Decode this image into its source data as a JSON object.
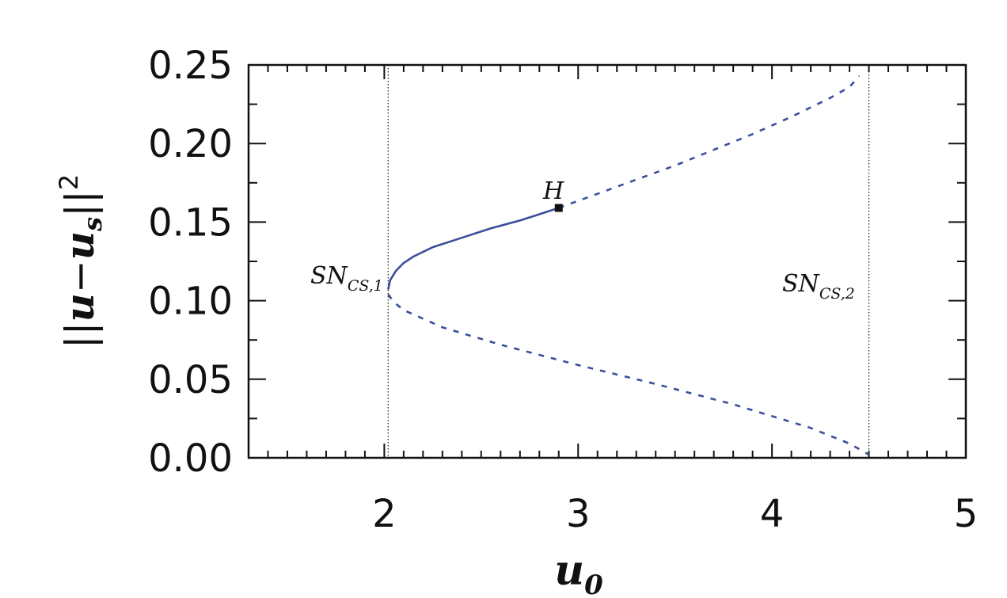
{
  "chart_data": {
    "type": "line",
    "xlabel": "u",
    "xlabel_sub": "0",
    "ylabel_parts": [
      "||",
      "u",
      "−",
      "u",
      "s",
      "||",
      "2"
    ],
    "xlim": [
      1.3,
      5.0
    ],
    "ylim": [
      0.0,
      0.25
    ],
    "x_ticks": [
      "2",
      "3",
      "4",
      "5"
    ],
    "x_tick_values": [
      2,
      3,
      4,
      5
    ],
    "y_ticks": [
      "0.00",
      "0.05",
      "0.10",
      "0.15",
      "0.20",
      "0.25"
    ],
    "y_tick_values": [
      0.0,
      0.05,
      0.1,
      0.15,
      0.2,
      0.25
    ],
    "line_color": "#3b4f9a",
    "grid": false,
    "series": [
      {
        "style": "solid",
        "x": [
          2.02,
          2.03,
          2.06,
          2.1,
          2.15,
          2.25,
          2.4,
          2.55,
          2.7,
          2.8,
          2.9
        ],
        "y": [
          0.107,
          0.113,
          0.119,
          0.124,
          0.128,
          0.134,
          0.14,
          0.146,
          0.151,
          0.155,
          0.159
        ]
      },
      {
        "style": "dashed",
        "x": [
          2.9,
          3.1,
          3.3,
          3.5,
          3.7,
          3.9,
          4.1,
          4.3,
          4.4,
          4.45
        ],
        "y": [
          0.159,
          0.168,
          0.177,
          0.186,
          0.196,
          0.206,
          0.217,
          0.229,
          0.236,
          0.243
        ]
      },
      {
        "style": "dashed",
        "x": [
          2.02,
          2.05,
          2.1,
          2.3,
          2.6,
          3.0,
          3.4,
          3.8,
          4.2,
          4.4,
          4.5
        ],
        "y": [
          0.104,
          0.099,
          0.094,
          0.083,
          0.072,
          0.059,
          0.047,
          0.034,
          0.019,
          0.009,
          0.002
        ]
      }
    ],
    "vlines": [
      2.02,
      4.5
    ],
    "points": [
      {
        "label": "H",
        "x": 2.9,
        "y": 0.159
      }
    ],
    "annotations": [
      {
        "main": "SN",
        "sub": "CS,1"
      },
      {
        "main": "SN",
        "sub": "CS,2"
      }
    ]
  }
}
